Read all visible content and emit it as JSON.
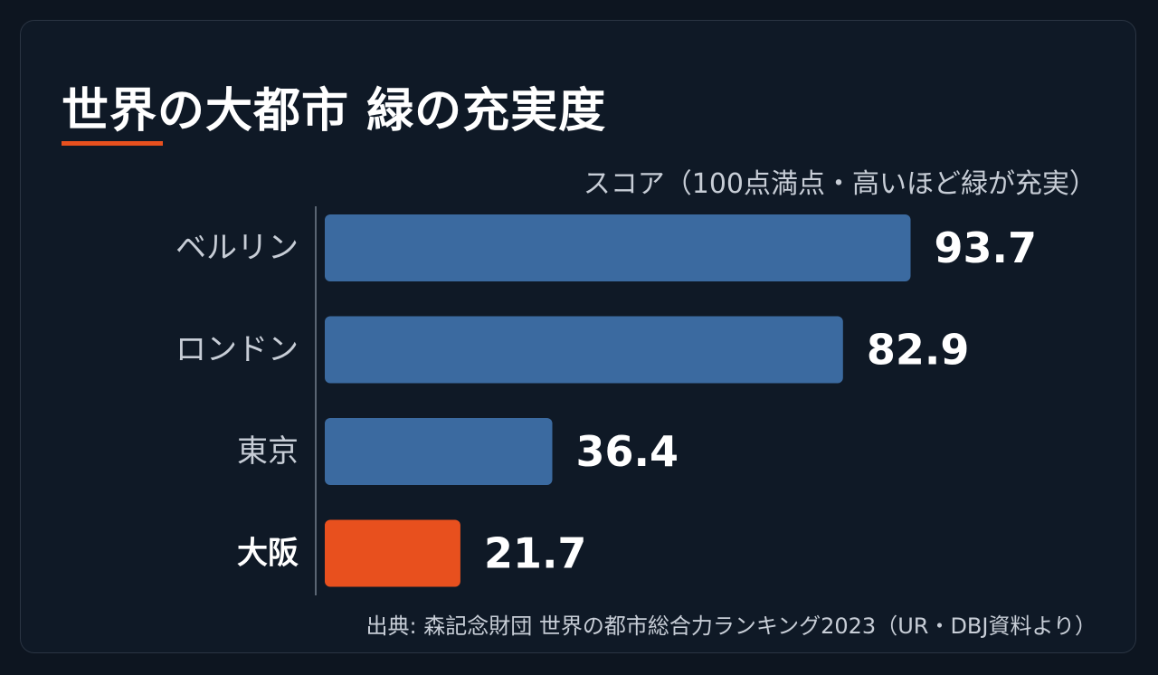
{
  "colors": {
    "background": "#0d1520",
    "panel": "#0f1926",
    "bar_default": "#3b6aa0",
    "bar_highlight": "#e8501e",
    "accent": "#e8501e",
    "text_primary": "#ffffff",
    "text_secondary": "#c7cdd6",
    "axis_line": "#5a6573"
  },
  "chart_data": {
    "type": "bar",
    "orientation": "horizontal",
    "title": "世界の大都市 緑の充実度",
    "xlabel": "スコア（100点満点・高いほど緑が充実）",
    "ylabel": "",
    "xlim": [
      0,
      100
    ],
    "grid": false,
    "categories": [
      "ベルリン",
      "ロンドン",
      "東京",
      "大阪"
    ],
    "values": [
      93.7,
      82.9,
      36.4,
      21.7
    ],
    "value_labels": [
      "93.7",
      "82.9",
      "36.4",
      "21.7"
    ],
    "highlight_index": 3
  },
  "footer": {
    "source": "出典: 森記念財団 世界の都市総合力ランキング2023（UR・DBJ資料より）"
  }
}
